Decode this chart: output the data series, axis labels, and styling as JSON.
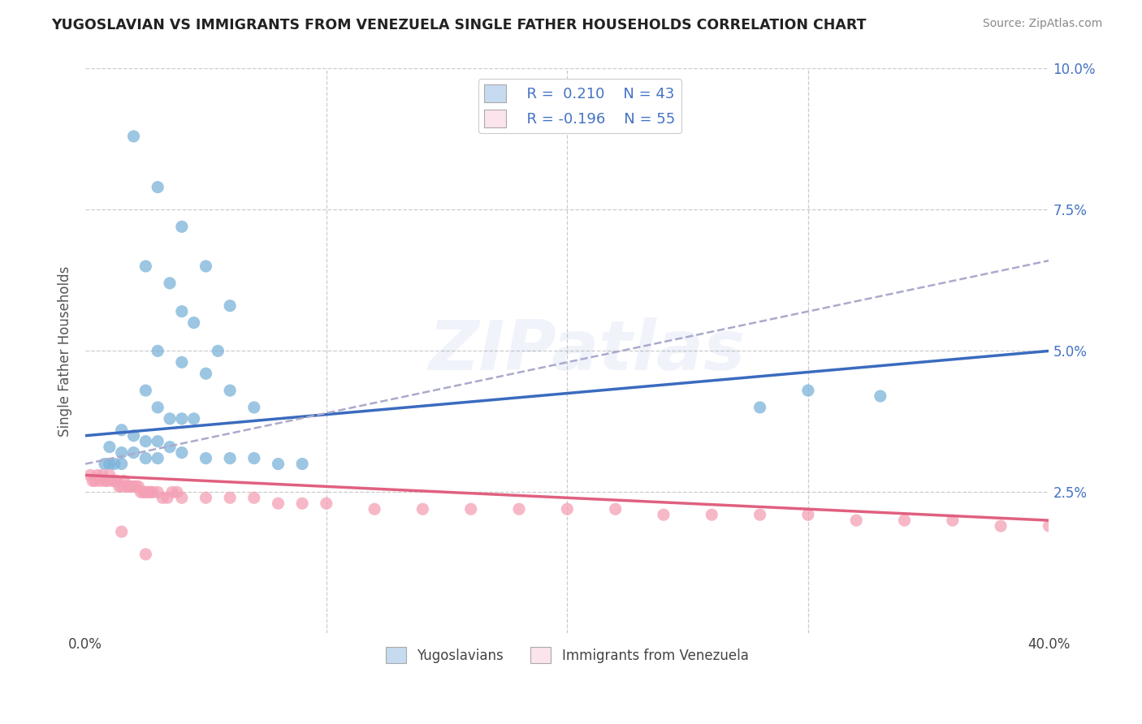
{
  "title": "YUGOSLAVIAN VS IMMIGRANTS FROM VENEZUELA SINGLE FATHER HOUSEHOLDS CORRELATION CHART",
  "source": "Source: ZipAtlas.com",
  "ylabel": "Single Father Households",
  "xlim": [
    0.0,
    0.4
  ],
  "ylim": [
    0.0,
    0.1
  ],
  "xticks": [
    0.0,
    0.1,
    0.2,
    0.3,
    0.4
  ],
  "xticklabels": [
    "0.0%",
    "",
    "",
    "",
    "40.0%"
  ],
  "yticks": [
    0.0,
    0.025,
    0.05,
    0.075,
    0.1
  ],
  "yticklabels_right": [
    "",
    "2.5%",
    "5.0%",
    "7.5%",
    "10.0%"
  ],
  "blue_color": "#7bb3d9",
  "blue_fill": "#c6dbef",
  "pink_color": "#f4a0b5",
  "pink_fill": "#fce4ec",
  "trend_blue": "#3a6bbf",
  "trend_pink": "#e06080",
  "trend_gray": "#aaaacc",
  "watermark": "ZIPatlas",
  "blue_scatter_x": [
    0.02,
    0.03,
    0.04,
    0.05,
    0.06,
    0.025,
    0.035,
    0.04,
    0.045,
    0.055,
    0.03,
    0.04,
    0.05,
    0.06,
    0.07,
    0.025,
    0.03,
    0.035,
    0.04,
    0.045,
    0.015,
    0.02,
    0.025,
    0.03,
    0.035,
    0.01,
    0.015,
    0.02,
    0.025,
    0.03,
    0.008,
    0.01,
    0.012,
    0.015,
    0.04,
    0.05,
    0.06,
    0.07,
    0.08,
    0.09,
    0.28,
    0.3,
    0.33
  ],
  "blue_scatter_y": [
    0.088,
    0.079,
    0.072,
    0.065,
    0.058,
    0.065,
    0.062,
    0.057,
    0.055,
    0.05,
    0.05,
    0.048,
    0.046,
    0.043,
    0.04,
    0.043,
    0.04,
    0.038,
    0.038,
    0.038,
    0.036,
    0.035,
    0.034,
    0.034,
    0.033,
    0.033,
    0.032,
    0.032,
    0.031,
    0.031,
    0.03,
    0.03,
    0.03,
    0.03,
    0.032,
    0.031,
    0.031,
    0.031,
    0.03,
    0.03,
    0.04,
    0.043,
    0.042
  ],
  "pink_scatter_x": [
    0.002,
    0.003,
    0.004,
    0.005,
    0.006,
    0.007,
    0.008,
    0.009,
    0.01,
    0.011,
    0.012,
    0.013,
    0.014,
    0.015,
    0.016,
    0.017,
    0.018,
    0.019,
    0.02,
    0.021,
    0.022,
    0.023,
    0.024,
    0.025,
    0.026,
    0.027,
    0.028,
    0.03,
    0.032,
    0.034,
    0.036,
    0.038,
    0.04,
    0.05,
    0.06,
    0.07,
    0.08,
    0.09,
    0.1,
    0.12,
    0.14,
    0.16,
    0.18,
    0.2,
    0.22,
    0.24,
    0.26,
    0.28,
    0.3,
    0.32,
    0.34,
    0.36,
    0.38,
    0.4,
    0.015,
    0.025
  ],
  "pink_scatter_y": [
    0.028,
    0.027,
    0.027,
    0.028,
    0.027,
    0.028,
    0.027,
    0.027,
    0.028,
    0.027,
    0.027,
    0.027,
    0.026,
    0.026,
    0.027,
    0.026,
    0.026,
    0.026,
    0.026,
    0.026,
    0.026,
    0.025,
    0.025,
    0.025,
    0.025,
    0.025,
    0.025,
    0.025,
    0.024,
    0.024,
    0.025,
    0.025,
    0.024,
    0.024,
    0.024,
    0.024,
    0.023,
    0.023,
    0.023,
    0.022,
    0.022,
    0.022,
    0.022,
    0.022,
    0.022,
    0.021,
    0.021,
    0.021,
    0.021,
    0.02,
    0.02,
    0.02,
    0.019,
    0.019,
    0.018,
    0.014
  ],
  "blue_trend_x": [
    0.0,
    0.4
  ],
  "blue_trend_y": [
    0.035,
    0.05
  ],
  "pink_trend_x": [
    0.0,
    0.4
  ],
  "pink_trend_y": [
    0.028,
    0.02
  ],
  "gray_trend_x": [
    0.0,
    0.4
  ],
  "gray_trend_y": [
    0.03,
    0.066
  ]
}
